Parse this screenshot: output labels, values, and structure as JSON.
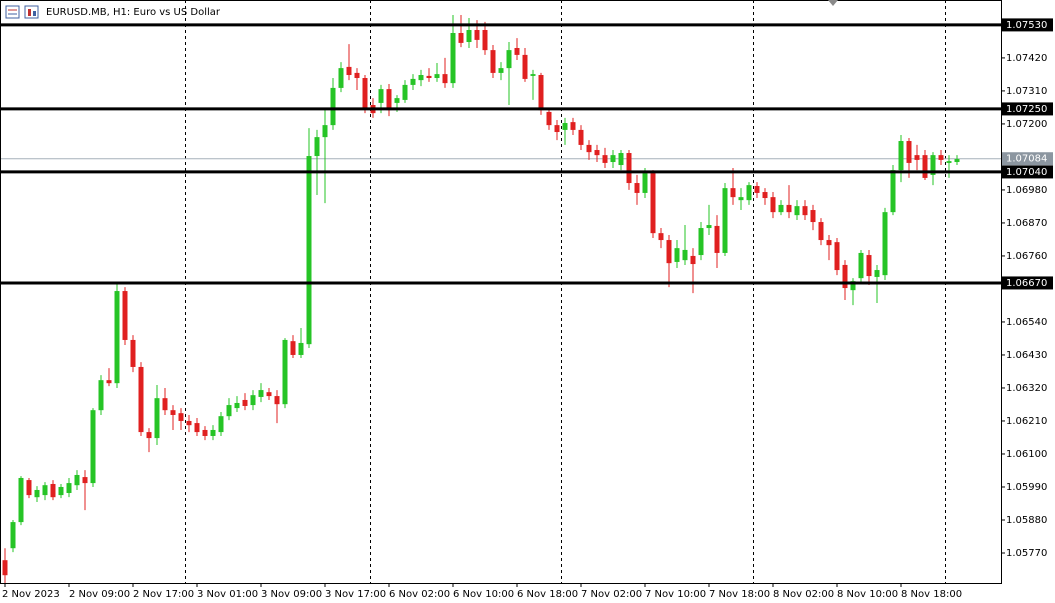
{
  "chart_data": {
    "type": "candlestick",
    "title": "EURUSD.MB, H1:  Euro vs US Dollar",
    "up_color": "#26c426",
    "down_color": "#e02020",
    "grid": false,
    "ylim": [
      1.0567,
      1.07613
    ],
    "yticks": [
      {
        "value": 1.0577,
        "label": "1.05770"
      },
      {
        "value": 1.0588,
        "label": "1.05880"
      },
      {
        "value": 1.0599,
        "label": "1.05990"
      },
      {
        "value": 1.061,
        "label": "1.06100"
      },
      {
        "value": 1.0621,
        "label": "1.06210"
      },
      {
        "value": 1.0632,
        "label": "1.06320"
      },
      {
        "value": 1.0643,
        "label": "1.06430"
      },
      {
        "value": 1.0654,
        "label": "1.06540"
      },
      {
        "value": 1.0676,
        "label": "1.06760"
      },
      {
        "value": 1.0687,
        "label": "1.06870"
      },
      {
        "value": 1.0698,
        "label": "1.06980"
      },
      {
        "value": 1.072,
        "label": "1.07200"
      },
      {
        "value": 1.0731,
        "label": "1.07310"
      },
      {
        "value": 1.0742,
        "label": "1.07420"
      }
    ],
    "levels": [
      {
        "value": 1.0753,
        "label": "1.07530"
      },
      {
        "value": 1.0725,
        "label": "1.07250"
      },
      {
        "value": 1.0704,
        "label": "1.07040"
      },
      {
        "value": 1.0667,
        "label": "1.06670"
      }
    ],
    "bid": 1.07084,
    "categories": [
      "2 Nov 2023",
      null,
      null,
      null,
      null,
      null,
      null,
      null,
      "2 Nov 09:00",
      null,
      null,
      null,
      null,
      null,
      null,
      null,
      "2 Nov 17:00",
      null,
      null,
      null,
      null,
      null,
      null,
      null,
      "3 Nov 01:00",
      null,
      null,
      null,
      null,
      null,
      null,
      null,
      "3 Nov 09:00",
      null,
      null,
      null,
      null,
      null,
      null,
      null,
      "3 Nov 17:00",
      null,
      null,
      null,
      null,
      null,
      null,
      null,
      "6 Nov 02:00",
      null,
      null,
      null,
      null,
      null,
      null,
      null,
      "6 Nov 10:00",
      null,
      null,
      null,
      null,
      null,
      null,
      null,
      "6 Nov 18:00",
      null,
      null,
      null,
      null,
      null,
      null,
      null,
      "7 Nov 02:00",
      null,
      null,
      null,
      null,
      null,
      null,
      null,
      "7 Nov 10:00",
      null,
      null,
      null,
      null,
      null,
      null,
      null,
      "7 Nov 18:00",
      null,
      null,
      null,
      null,
      null,
      null,
      null,
      "8 Nov 02:00",
      null,
      null,
      null,
      null,
      null,
      null,
      null,
      "8 Nov 10:00",
      null,
      null,
      null,
      null,
      null,
      null,
      null,
      "8 Nov 18:00",
      null,
      null,
      null,
      null,
      null,
      null,
      null
    ],
    "open": [
      1.05746,
      1.05786,
      1.05873,
      1.06013,
      1.05956,
      1.05963,
      1.06,
      1.05963,
      1.0597,
      1.05996,
      1.06023,
      1.06003,
      1.06246,
      1.06346,
      1.06336,
      1.06643,
      1.0648,
      1.0639,
      1.06173,
      1.06153,
      1.06286,
      1.06246,
      1.06236,
      1.0621,
      1.06203,
      1.0618,
      1.0616,
      1.06173,
      1.06226,
      1.06253,
      1.0628,
      1.06263,
      1.0629,
      1.06306,
      1.06293,
      1.06266,
      1.06476,
      1.0643,
      1.06466,
      1.07093,
      1.07156,
      1.07196,
      1.0732,
      1.0739,
      1.0737,
      1.07353,
      1.07263,
      1.0727,
      1.07316,
      1.0727,
      1.0728,
      1.0733,
      1.07346,
      1.0736,
      1.07353,
      1.07366,
      1.07336,
      1.07503,
      1.07473,
      1.07513,
      1.07513,
      1.07446,
      1.0737,
      1.07386,
      1.07453,
      1.0743,
      1.0736,
      1.07363,
      1.0724,
      1.07196,
      1.0718,
      1.07206,
      1.0718,
      1.0713,
      1.07113,
      1.07096,
      1.07073,
      1.07063,
      1.07103,
      1.07003,
      1.0697,
      1.07036,
      1.06836,
      1.06813,
      1.0674,
      1.06746,
      1.0676,
      1.06763,
      1.06853,
      1.0686,
      1.0677,
      1.06986,
      1.06946,
      1.06946,
      1.06993,
      1.06973,
      1.06956,
      1.06906,
      1.0693,
      1.06896,
      1.06926,
      1.06913,
      1.06873,
      1.06813,
      1.06806,
      1.0673,
      1.06646,
      1.06686,
      1.06763,
      1.0669,
      1.06696,
      1.06906,
      1.07046,
      1.07143,
      1.07096,
      1.07096,
      1.0703,
      1.07096,
      1.0707,
      1.07073
    ],
    "high": [
      1.05786,
      1.0588,
      1.06026,
      1.0602,
      1.05993,
      1.06006,
      1.06013,
      1.06,
      1.0602,
      1.06046,
      1.06046,
      1.06253,
      1.06363,
      1.06386,
      1.0667,
      1.06656,
      1.06496,
      1.06406,
      1.06186,
      1.0633,
      1.0632,
      1.06263,
      1.06253,
      1.0623,
      1.0622,
      1.06193,
      1.06196,
      1.0624,
      1.06286,
      1.06293,
      1.06303,
      1.06313,
      1.06336,
      1.0632,
      1.06313,
      1.06486,
      1.06496,
      1.0652,
      1.07186,
      1.0718,
      1.07253,
      1.07353,
      1.07406,
      1.07466,
      1.07386,
      1.07363,
      1.07286,
      1.0733,
      1.07333,
      1.07296,
      1.07346,
      1.07366,
      1.0738,
      1.07386,
      1.07403,
      1.0742,
      1.07563,
      1.07563,
      1.07553,
      1.07546,
      1.0754,
      1.07463,
      1.07406,
      1.07473,
      1.07486,
      1.07453,
      1.0738,
      1.0737,
      1.07253,
      1.07213,
      1.0722,
      1.0722,
      1.07196,
      1.07146,
      1.0713,
      1.0712,
      1.07113,
      1.07113,
      1.07113,
      1.0703,
      1.07053,
      1.07046,
      1.06853,
      1.0683,
      1.06813,
      1.06863,
      1.06786,
      1.06873,
      1.0693,
      1.06896,
      1.07003,
      1.07053,
      1.06986,
      1.07006,
      1.07006,
      1.06986,
      1.06973,
      1.06946,
      1.06996,
      1.06946,
      1.06946,
      1.0693,
      1.06886,
      1.0683,
      1.0682,
      1.06746,
      1.06686,
      1.0678,
      1.0678,
      1.0673,
      1.0692,
      1.07063,
      1.07163,
      1.07153,
      1.0713,
      1.07113,
      1.07106,
      1.07113,
      1.07096,
      1.07096
    ],
    "low": [
      1.0567,
      1.05773,
      1.05863,
      1.05953,
      1.0594,
      1.05946,
      1.05946,
      1.05953,
      1.05956,
      1.0598,
      1.05913,
      1.0599,
      1.0623,
      1.06326,
      1.0632,
      1.06463,
      1.06373,
      1.0616,
      1.06106,
      1.0613,
      1.0623,
      1.0618,
      1.0618,
      1.06173,
      1.0616,
      1.06146,
      1.06146,
      1.0616,
      1.06213,
      1.0624,
      1.06246,
      1.06246,
      1.06273,
      1.0628,
      1.06203,
      1.06253,
      1.0642,
      1.0642,
      1.06453,
      1.06963,
      1.06936,
      1.0718,
      1.07306,
      1.07346,
      1.07313,
      1.07236,
      1.0722,
      1.07236,
      1.07226,
      1.0724,
      1.0727,
      1.07313,
      1.07326,
      1.0734,
      1.0734,
      1.0732,
      1.0732,
      1.07456,
      1.07453,
      1.07453,
      1.0743,
      1.07353,
      1.07346,
      1.07263,
      1.07413,
      1.0734,
      1.0728,
      1.0723,
      1.0718,
      1.07146,
      1.0713,
      1.07163,
      1.07113,
      1.0708,
      1.07073,
      1.07053,
      1.07053,
      1.07046,
      1.0698,
      1.0693,
      1.06953,
      1.0682,
      1.06786,
      1.06656,
      1.0672,
      1.0673,
      1.06636,
      1.06746,
      1.0683,
      1.0672,
      1.0676,
      1.0693,
      1.06913,
      1.0693,
      1.06953,
      1.0693,
      1.06886,
      1.06896,
      1.06886,
      1.0688,
      1.0688,
      1.06846,
      1.06796,
      1.06746,
      1.06696,
      1.06613,
      1.06596,
      1.0667,
      1.06663,
      1.06603,
      1.0668,
      1.06896,
      1.07006,
      1.0702,
      1.07046,
      1.07013,
      1.06996,
      1.07063,
      1.0702,
      1.07063
    ],
    "close": [
      1.05696,
      1.05873,
      1.0602,
      1.05963,
      1.0598,
      1.05996,
      1.05956,
      1.0599,
      1.06003,
      1.0603,
      1.06003,
      1.06246,
      1.06346,
      1.06336,
      1.06643,
      1.0648,
      1.0639,
      1.06173,
      1.06153,
      1.06286,
      1.06246,
      1.0623,
      1.0621,
      1.06196,
      1.06173,
      1.0616,
      1.0618,
      1.06226,
      1.06263,
      1.0627,
      1.0626,
      1.06296,
      1.06313,
      1.06293,
      1.06266,
      1.0648,
      1.0643,
      1.0647,
      1.07093,
      1.07156,
      1.07196,
      1.0732,
      1.07386,
      1.07363,
      1.07353,
      1.07253,
      1.07236,
      1.07316,
      1.07246,
      1.07286,
      1.0733,
      1.0735,
      1.07363,
      1.07353,
      1.07366,
      1.07336,
      1.07503,
      1.0747,
      1.07513,
      1.0748,
      1.07446,
      1.0737,
      1.07386,
      1.07446,
      1.0743,
      1.0735,
      1.07366,
      1.07246,
      1.07196,
      1.07173,
      1.07203,
      1.0718,
      1.0713,
      1.07106,
      1.07096,
      1.0707,
      1.07096,
      1.07103,
      1.07003,
      1.0697,
      1.07036,
      1.06836,
      1.06813,
      1.06736,
      1.06786,
      1.0678,
      1.06733,
      1.06853,
      1.06863,
      1.0677,
      1.06986,
      1.06956,
      1.06956,
      1.06996,
      1.0697,
      1.06953,
      1.06906,
      1.0693,
      1.06906,
      1.06926,
      1.06896,
      1.06873,
      1.06813,
      1.06796,
      1.06713,
      1.06653,
      1.06676,
      1.0677,
      1.06693,
      1.06713,
      1.06906,
      1.07046,
      1.07143,
      1.0707,
      1.0708,
      1.0702,
      1.07096,
      1.0708,
      1.07076,
      1.07083
    ]
  }
}
